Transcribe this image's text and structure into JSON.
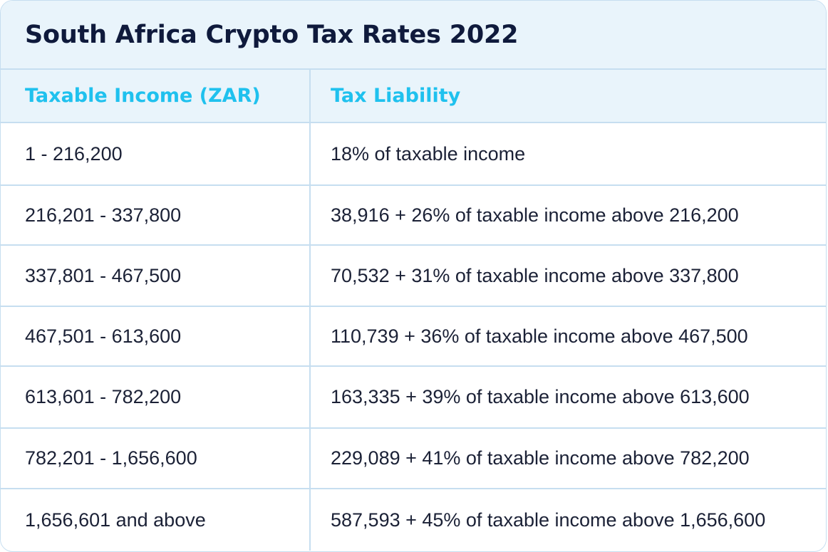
{
  "title": "South Africa Crypto Tax Rates 2022",
  "table": {
    "headers": [
      "Taxable Income (ZAR)",
      "Tax Liability"
    ],
    "rows": [
      [
        "1 - 216,200",
        "18% of taxable income"
      ],
      [
        "216,201 - 337,800",
        "38,916 + 26% of taxable income above 216,200"
      ],
      [
        "337,801 - 467,500",
        "70,532 + 31% of taxable income above 337,800"
      ],
      [
        "467,501 - 613,600",
        "110,739 + 36% of taxable income above 467,500"
      ],
      [
        "613,601 - 782,200",
        "163,335 + 39% of taxable income above 613,600"
      ],
      [
        "782,201 - 1,656,600",
        "229,089 + 41% of taxable income above 782,200"
      ],
      [
        "1,656,601 and above",
        "587,593 + 45% of taxable income above 1,656,600"
      ]
    ]
  },
  "colors": {
    "title": "#0f1a3c",
    "header_text": "#1fc1ee",
    "header_bg": "#e9f4fb",
    "border": "#c6def0",
    "body_text": "#1b2136"
  }
}
